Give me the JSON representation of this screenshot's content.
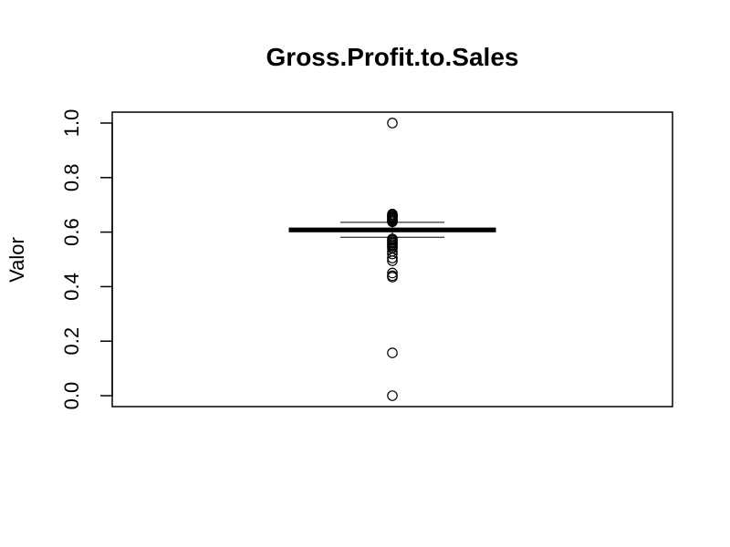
{
  "chart_data": {
    "type": "boxplot",
    "title": "Gross.Profit.to.Sales",
    "xlabel": "",
    "ylabel": "Valor",
    "ylim": [
      -0.04,
      1.04
    ],
    "yticks": [
      0.0,
      0.2,
      0.4,
      0.6,
      0.8,
      1.0
    ],
    "ytick_labels": [
      "0.0",
      "0.2",
      "0.4",
      "0.6",
      "0.8",
      "1.0"
    ],
    "grid": false,
    "legend": "none",
    "box": {
      "whisker_low": 0.581,
      "q1": 0.601,
      "median": 0.608,
      "q3": 0.615,
      "whisker_high": 0.636
    },
    "outliers": [
      1.0,
      0.666,
      0.662,
      0.658,
      0.654,
      0.65,
      0.646,
      0.642,
      0.638,
      0.575,
      0.57,
      0.565,
      0.56,
      0.555,
      0.55,
      0.545,
      0.54,
      0.53,
      0.52,
      0.505,
      0.495,
      0.45,
      0.44,
      0.435,
      0.157,
      0.0
    ],
    "colors": {
      "line": "#000000",
      "background": "#ffffff"
    }
  }
}
